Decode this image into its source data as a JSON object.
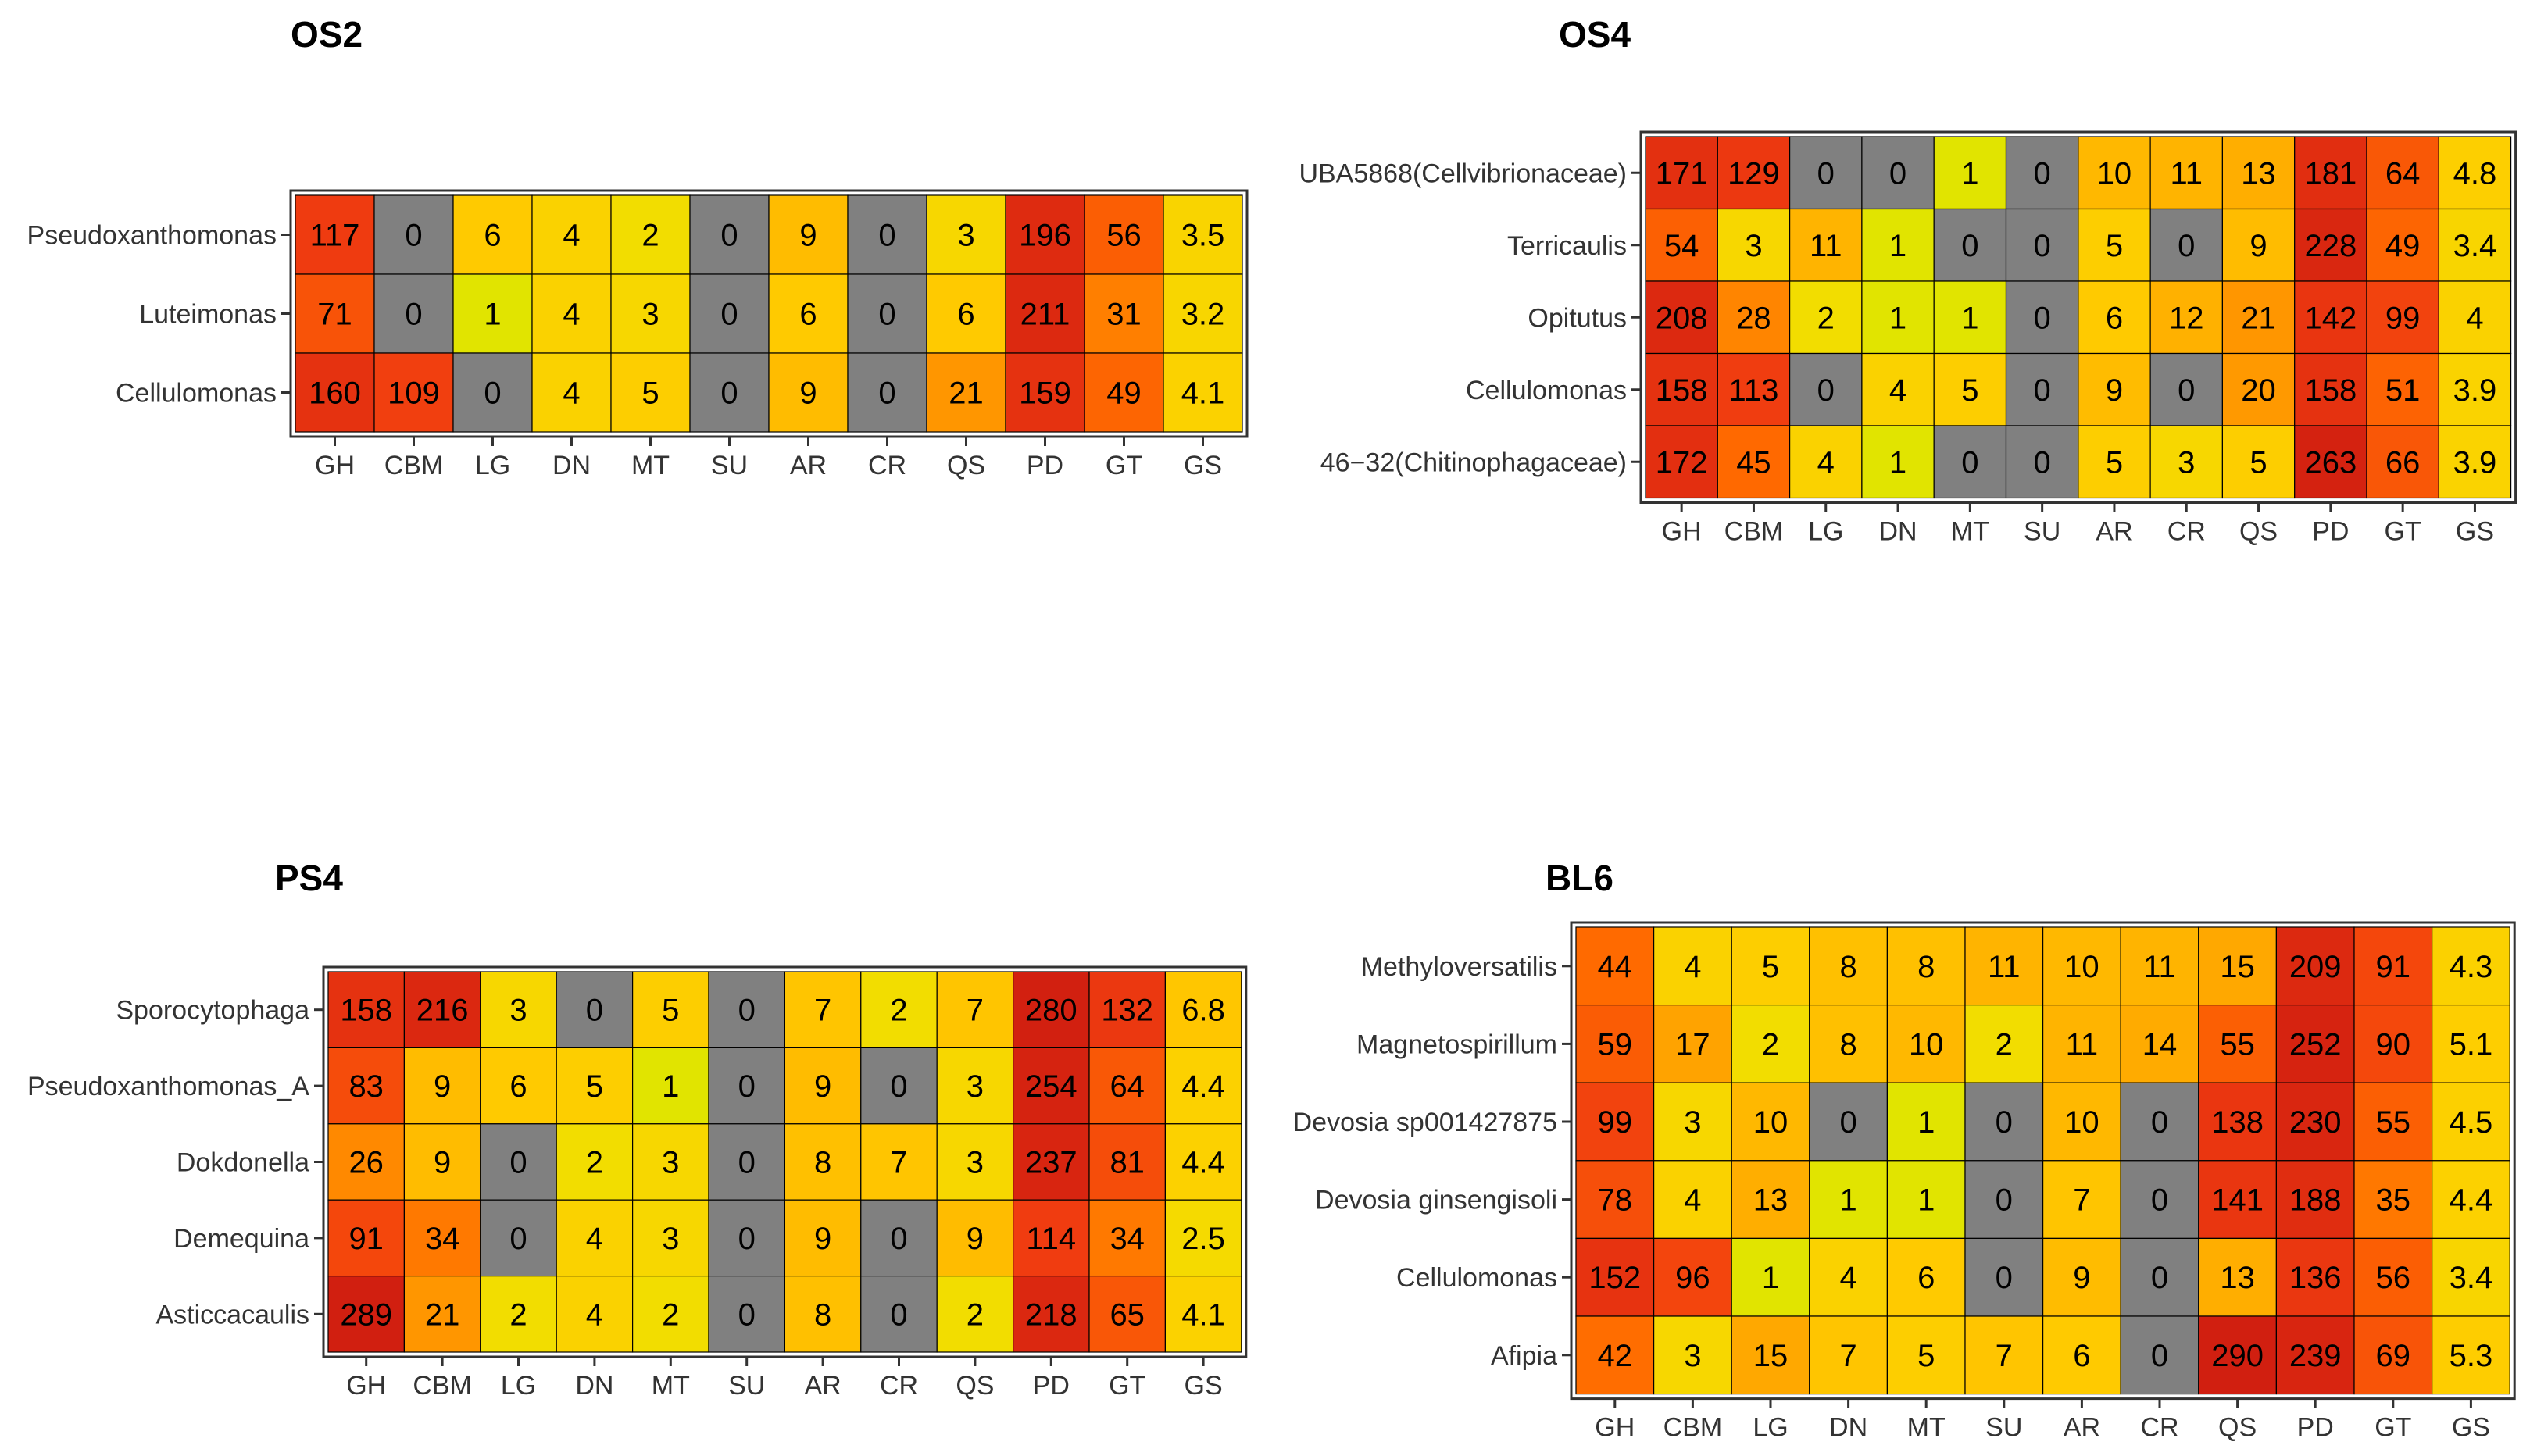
{
  "columns": [
    "GH",
    "CBM",
    "LG",
    "DN",
    "MT",
    "SU",
    "AR",
    "CR",
    "QS",
    "PD",
    "GT",
    "GS"
  ],
  "color_scale": {
    "zero": "#808080",
    "stops": [
      "#b8f000",
      "#f0e000",
      "#ffcc00",
      "#ffa500",
      "#ff6a00",
      "#f03c10",
      "#d01e10"
    ]
  },
  "chart_data": [
    {
      "type": "heatmap",
      "title": "OS2",
      "rows": [
        "Pseudoxanthomonas",
        "Luteimonas",
        "Cellulomonas"
      ],
      "columns": [
        "GH",
        "CBM",
        "LG",
        "DN",
        "MT",
        "SU",
        "AR",
        "CR",
        "QS",
        "PD",
        "GT",
        "GS"
      ],
      "values": [
        [
          "117",
          "0",
          "6",
          "4",
          "2",
          "0",
          "9",
          "0",
          "3",
          "196",
          "56",
          "3.5"
        ],
        [
          "71",
          "0",
          "1",
          "4",
          "3",
          "0",
          "6",
          "0",
          "6",
          "211",
          "31",
          "3.2"
        ],
        [
          "160",
          "109",
          "0",
          "4",
          "5",
          "0",
          "9",
          "0",
          "21",
          "159",
          "49",
          "4.1"
        ]
      ]
    },
    {
      "type": "heatmap",
      "title": "OS4",
      "rows": [
        "UBA5868(Cellvibrionaceae)",
        "Terricaulis",
        "Opitutus",
        "Cellulomonas",
        "46−32(Chitinophagaceae)"
      ],
      "columns": [
        "GH",
        "CBM",
        "LG",
        "DN",
        "MT",
        "SU",
        "AR",
        "CR",
        "QS",
        "PD",
        "GT",
        "GS"
      ],
      "values": [
        [
          "171",
          "129",
          "0",
          "0",
          "1",
          "0",
          "10",
          "11",
          "13",
          "181",
          "64",
          "4.8"
        ],
        [
          "54",
          "3",
          "11",
          "1",
          "0",
          "0",
          "5",
          "0",
          "9",
          "228",
          "49",
          "3.4"
        ],
        [
          "208",
          "28",
          "2",
          "1",
          "1",
          "0",
          "6",
          "12",
          "21",
          "142",
          "99",
          "4"
        ],
        [
          "158",
          "113",
          "0",
          "4",
          "5",
          "0",
          "9",
          "0",
          "20",
          "158",
          "51",
          "3.9"
        ],
        [
          "172",
          "45",
          "4",
          "1",
          "0",
          "0",
          "5",
          "3",
          "5",
          "263",
          "66",
          "3.9"
        ]
      ]
    },
    {
      "type": "heatmap",
      "title": "PS4",
      "rows": [
        "Sporocytophaga",
        "Pseudoxanthomonas_A",
        "Dokdonella",
        "Demequina",
        "Asticcacaulis"
      ],
      "columns": [
        "GH",
        "CBM",
        "LG",
        "DN",
        "MT",
        "SU",
        "AR",
        "CR",
        "QS",
        "PD",
        "GT",
        "GS"
      ],
      "values": [
        [
          "158",
          "216",
          "3",
          "0",
          "5",
          "0",
          "7",
          "2",
          "7",
          "280",
          "132",
          "6.8"
        ],
        [
          "83",
          "9",
          "6",
          "5",
          "1",
          "0",
          "9",
          "0",
          "3",
          "254",
          "64",
          "4.4"
        ],
        [
          "26",
          "9",
          "0",
          "2",
          "3",
          "0",
          "8",
          "7",
          "3",
          "237",
          "81",
          "4.4"
        ],
        [
          "91",
          "34",
          "0",
          "4",
          "3",
          "0",
          "9",
          "0",
          "9",
          "114",
          "34",
          "2.5"
        ],
        [
          "289",
          "21",
          "2",
          "4",
          "2",
          "0",
          "8",
          "0",
          "2",
          "218",
          "65",
          "4.1"
        ]
      ]
    },
    {
      "type": "heatmap",
      "title": "BL6",
      "rows": [
        "Methyloversatilis",
        "Magnetospirillum",
        "Devosia sp001427875",
        "Devosia ginsengisoli",
        "Cellulomonas",
        "Afipia"
      ],
      "columns": [
        "GH",
        "CBM",
        "LG",
        "DN",
        "MT",
        "SU",
        "AR",
        "CR",
        "QS",
        "PD",
        "GT",
        "GS"
      ],
      "values": [
        [
          "44",
          "4",
          "5",
          "8",
          "8",
          "11",
          "10",
          "11",
          "15",
          "209",
          "91",
          "4.3"
        ],
        [
          "59",
          "17",
          "2",
          "8",
          "10",
          "2",
          "11",
          "14",
          "55",
          "252",
          "90",
          "5.1"
        ],
        [
          "99",
          "3",
          "10",
          "0",
          "1",
          "0",
          "10",
          "0",
          "138",
          "230",
          "55",
          "4.5"
        ],
        [
          "78",
          "4",
          "13",
          "1",
          "1",
          "0",
          "7",
          "0",
          "141",
          "188",
          "35",
          "4.4"
        ],
        [
          "152",
          "96",
          "1",
          "4",
          "6",
          "0",
          "9",
          "0",
          "13",
          "136",
          "56",
          "3.4"
        ],
        [
          "42",
          "3",
          "15",
          "7",
          "5",
          "7",
          "6",
          "0",
          "290",
          "239",
          "69",
          "5.3"
        ]
      ]
    }
  ]
}
